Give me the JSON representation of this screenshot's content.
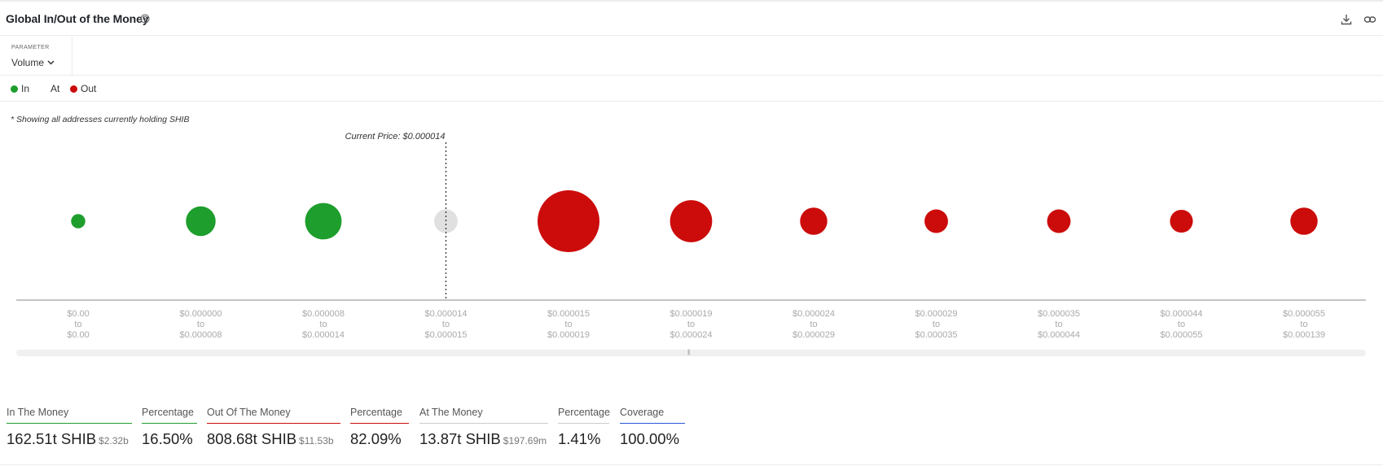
{
  "header": {
    "title": "Global In/Out of the Money",
    "help_icon": "question-circle-icon",
    "actions": [
      {
        "name": "download-icon"
      },
      {
        "name": "link-icon"
      }
    ]
  },
  "parameter": {
    "label": "PARAMETER",
    "value": "Volume",
    "icon": "chevron-down-icon"
  },
  "legend": [
    {
      "label": "In",
      "color": "#1e9e2c"
    },
    {
      "label": "At",
      "color": ""
    },
    {
      "label": "Out",
      "color": "#cc0b0b"
    }
  ],
  "note": "* Showing all addresses currently holding SHIB",
  "chart_data": {
    "type": "bubble",
    "current_price_label": "Current Price: $0.000014",
    "current_price_index": 3,
    "colors": {
      "in": "#1e9e2c",
      "at": "#e0e0e0",
      "out": "#cc0b0b"
    },
    "buckets": [
      {
        "range": [
          "$0.00",
          "to",
          "$0.00"
        ],
        "status": "in",
        "relative_size": 0.23
      },
      {
        "range": [
          "$0.000000",
          "to",
          "$0.000008"
        ],
        "status": "in",
        "relative_size": 0.48
      },
      {
        "range": [
          "$0.000008",
          "to",
          "$0.000014"
        ],
        "status": "in",
        "relative_size": 0.59
      },
      {
        "range": [
          "$0.000014",
          "to",
          "$0.000015"
        ],
        "status": "at",
        "relative_size": 0.38
      },
      {
        "range": [
          "$0.000015",
          "to",
          "$0.000019"
        ],
        "status": "out",
        "relative_size": 1.0
      },
      {
        "range": [
          "$0.000019",
          "to",
          "$0.000024"
        ],
        "status": "out",
        "relative_size": 0.68
      },
      {
        "range": [
          "$0.000024",
          "to",
          "$0.000029"
        ],
        "status": "out",
        "relative_size": 0.44
      },
      {
        "range": [
          "$0.000029",
          "to",
          "$0.000035"
        ],
        "status": "out",
        "relative_size": 0.38
      },
      {
        "range": [
          "$0.000035",
          "to",
          "$0.000044"
        ],
        "status": "out",
        "relative_size": 0.38
      },
      {
        "range": [
          "$0.000044",
          "to",
          "$0.000055"
        ],
        "status": "out",
        "relative_size": 0.37
      },
      {
        "range": [
          "$0.000055",
          "to",
          "$0.000139"
        ],
        "status": "out",
        "relative_size": 0.44
      }
    ]
  },
  "stats": [
    {
      "label": "In The Money",
      "value": "162.51t SHIB",
      "sub": "$2.32b",
      "underline": "#1e9e2c"
    },
    {
      "label": "Percentage",
      "value": "16.50%",
      "sub": "",
      "underline": "#1e9e2c"
    },
    {
      "label": "Out Of The Money",
      "value": "808.68t SHIB",
      "sub": "$11.53b",
      "underline": "#cc0b0b"
    },
    {
      "label": "Percentage",
      "value": "82.09%",
      "sub": "",
      "underline": "#cc0b0b"
    },
    {
      "label": "At The Money",
      "value": "13.87t SHIB",
      "sub": "$197.69m",
      "underline": "#cccccc"
    },
    {
      "label": "Percentage",
      "value": "1.41%",
      "sub": "",
      "underline": "#cccccc"
    },
    {
      "label": "Coverage",
      "value": "100.00%",
      "sub": "",
      "underline": "#2a55d8"
    }
  ]
}
